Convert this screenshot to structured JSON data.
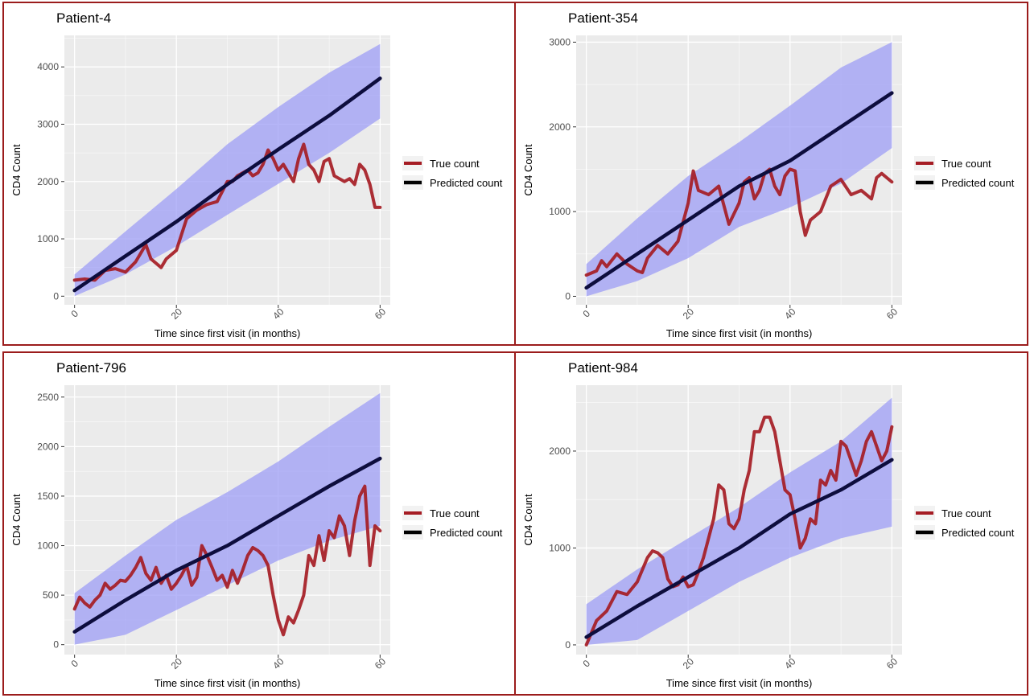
{
  "legend": {
    "true_label": "True count",
    "pred_label": "Predicted count"
  },
  "colors": {
    "true": "#a51c24",
    "pred": "#0d0d3d",
    "band": "#9d9df5",
    "panel_bg": "#ebebeb",
    "grid": "#ffffff",
    "border": "#9b1c1c"
  },
  "chart_data": [
    {
      "type": "line",
      "title": "Patient-4",
      "xlabel": "Time since first visit (in months)",
      "ylabel": "CD4 Count",
      "xlim": [
        -2,
        62
      ],
      "ylim": [
        -150,
        4550
      ],
      "xticks": [
        0,
        20,
        40,
        60
      ],
      "yticks": [
        0,
        1000,
        2000,
        3000,
        4000
      ],
      "legend": "right",
      "series": [
        {
          "name": "True count",
          "x": [
            0,
            2,
            4,
            6,
            8,
            10,
            12,
            14,
            15,
            17,
            18,
            20,
            22,
            24,
            26,
            28,
            30,
            31,
            32,
            34,
            35,
            36,
            37,
            38,
            39,
            40,
            41,
            42,
            43,
            44,
            45,
            46,
            47,
            48,
            49,
            50,
            51,
            52,
            53,
            54,
            55,
            56,
            57,
            58,
            59,
            60
          ],
          "y": [
            280,
            300,
            280,
            450,
            480,
            420,
            600,
            900,
            650,
            500,
            650,
            800,
            1350,
            1500,
            1600,
            1650,
            2000,
            2000,
            2100,
            2200,
            2100,
            2150,
            2300,
            2550,
            2400,
            2200,
            2300,
            2150,
            2000,
            2400,
            2650,
            2300,
            2200,
            2000,
            2350,
            2400,
            2100,
            2050,
            2000,
            2050,
            1950,
            2300,
            2200,
            1950,
            1550,
            1550
          ]
        },
        {
          "name": "Predicted count",
          "x": [
            0,
            10,
            20,
            30,
            40,
            50,
            60
          ],
          "y": [
            100,
            700,
            1300,
            1950,
            2560,
            3150,
            3800
          ]
        }
      ],
      "band": {
        "x": [
          0,
          10,
          20,
          30,
          40,
          50,
          60
        ],
        "lower": [
          0,
          380,
          870,
          1420,
          1960,
          2500,
          3100
        ],
        "upper": [
          380,
          1130,
          1870,
          2650,
          3300,
          3900,
          4400
        ]
      }
    },
    {
      "type": "line",
      "title": "Patient-354",
      "xlabel": "Time since first visit (in months)",
      "ylabel": "CD4 Count",
      "xlim": [
        -2,
        62
      ],
      "ylim": [
        -100,
        3080
      ],
      "xticks": [
        0,
        20,
        40,
        60
      ],
      "yticks": [
        0,
        1000,
        2000,
        3000
      ],
      "legend": "right",
      "series": [
        {
          "name": "True count",
          "x": [
            0,
            2,
            3,
            4,
            6,
            8,
            10,
            11,
            12,
            14,
            16,
            18,
            20,
            21,
            22,
            24,
            26,
            28,
            30,
            31,
            32,
            33,
            34,
            35,
            36,
            37,
            38,
            39,
            40,
            41,
            42,
            43,
            44,
            46,
            48,
            50,
            52,
            54,
            56,
            57,
            58,
            59,
            60
          ],
          "y": [
            250,
            300,
            420,
            350,
            500,
            380,
            300,
            280,
            450,
            600,
            500,
            650,
            1100,
            1480,
            1250,
            1200,
            1300,
            850,
            1100,
            1350,
            1400,
            1150,
            1250,
            1450,
            1500,
            1300,
            1200,
            1420,
            1500,
            1480,
            1000,
            720,
            900,
            1000,
            1300,
            1380,
            1200,
            1250,
            1150,
            1400,
            1450,
            1400,
            1350
          ]
        },
        {
          "name": "Predicted count",
          "x": [
            0,
            10,
            20,
            30,
            40,
            50,
            60
          ],
          "y": [
            100,
            500,
            900,
            1300,
            1600,
            2000,
            2400
          ]
        }
      ],
      "band": {
        "x": [
          0,
          10,
          20,
          30,
          40,
          50,
          60
        ],
        "lower": [
          0,
          180,
          450,
          820,
          1050,
          1330,
          1750
        ],
        "upper": [
          380,
          920,
          1420,
          1820,
          2250,
          2700,
          3000
        ]
      }
    },
    {
      "type": "line",
      "title": "Patient-796",
      "xlabel": "Time since first visit (in months)",
      "ylabel": "CD4 Count",
      "xlim": [
        -2,
        62
      ],
      "ylim": [
        -100,
        2620
      ],
      "xticks": [
        0,
        20,
        40,
        60
      ],
      "yticks": [
        0,
        500,
        1000,
        1500,
        2000,
        2500
      ],
      "legend": "right",
      "series": [
        {
          "name": "True count",
          "x": [
            0,
            1,
            2,
            3,
            4,
            5,
            6,
            7,
            8,
            9,
            10,
            11,
            12,
            13,
            14,
            15,
            16,
            17,
            18,
            19,
            20,
            21,
            22,
            23,
            24,
            25,
            26,
            27,
            28,
            29,
            30,
            31,
            32,
            33,
            34,
            35,
            36,
            37,
            38,
            39,
            40,
            41,
            42,
            43,
            44,
            45,
            46,
            47,
            48,
            49,
            50,
            51,
            52,
            53,
            54,
            55,
            56,
            57,
            58,
            59,
            60
          ],
          "y": [
            360,
            480,
            420,
            380,
            450,
            500,
            620,
            560,
            600,
            650,
            640,
            700,
            780,
            880,
            720,
            650,
            780,
            620,
            700,
            560,
            620,
            700,
            800,
            600,
            680,
            1000,
            900,
            780,
            650,
            700,
            580,
            750,
            620,
            750,
            900,
            980,
            950,
            900,
            800,
            500,
            250,
            100,
            280,
            220,
            350,
            500,
            900,
            800,
            1100,
            850,
            1150,
            1080,
            1300,
            1200,
            900,
            1250,
            1500,
            1600,
            800,
            1200,
            1150
          ]
        },
        {
          "name": "Predicted count",
          "x": [
            0,
            10,
            20,
            30,
            40,
            50,
            60
          ],
          "y": [
            130,
            450,
            750,
            1000,
            1300,
            1600,
            1880
          ]
        }
      ],
      "band": {
        "x": [
          0,
          10,
          20,
          30,
          40,
          50,
          60
        ],
        "lower": [
          0,
          100,
          350,
          600,
          850,
          1050,
          1200
        ],
        "upper": [
          520,
          900,
          1260,
          1540,
          1850,
          2200,
          2540
        ]
      }
    },
    {
      "type": "line",
      "title": "Patient-984",
      "xlabel": "Time since first visit (in months)",
      "ylabel": "CD4 Count",
      "xlim": [
        -2,
        62
      ],
      "ylim": [
        -100,
        2680
      ],
      "xticks": [
        0,
        20,
        40,
        60
      ],
      "yticks": [
        0,
        1000,
        2000
      ],
      "legend": "right",
      "series": [
        {
          "name": "True count",
          "x": [
            0,
            2,
            4,
            6,
            8,
            10,
            12,
            13,
            14,
            15,
            16,
            17,
            18,
            19,
            20,
            21,
            22,
            23,
            24,
            25,
            26,
            27,
            28,
            29,
            30,
            31,
            32,
            33,
            34,
            35,
            36,
            37,
            38,
            39,
            40,
            41,
            42,
            43,
            44,
            45,
            46,
            47,
            48,
            49,
            50,
            51,
            52,
            53,
            54,
            55,
            56,
            57,
            58,
            59,
            60
          ],
          "y": [
            0,
            250,
            350,
            550,
            520,
            650,
            900,
            970,
            950,
            900,
            680,
            600,
            620,
            700,
            600,
            620,
            750,
            900,
            1100,
            1300,
            1650,
            1600,
            1250,
            1200,
            1300,
            1600,
            1800,
            2200,
            2200,
            2350,
            2350,
            2200,
            1900,
            1600,
            1550,
            1300,
            1000,
            1100,
            1300,
            1250,
            1700,
            1650,
            1800,
            1700,
            2100,
            2050,
            1900,
            1750,
            1900,
            2100,
            2200,
            2050,
            1900,
            2000,
            2250
          ]
        },
        {
          "name": "Predicted count",
          "x": [
            0,
            10,
            20,
            30,
            40,
            50,
            60
          ],
          "y": [
            80,
            400,
            700,
            1000,
            1350,
            1600,
            1910
          ]
        }
      ],
      "band": {
        "x": [
          0,
          10,
          20,
          30,
          40,
          50,
          60
        ],
        "lower": [
          0,
          50,
          350,
          650,
          900,
          1100,
          1220
        ],
        "upper": [
          420,
          780,
          1100,
          1420,
          1780,
          2100,
          2550
        ]
      }
    }
  ]
}
